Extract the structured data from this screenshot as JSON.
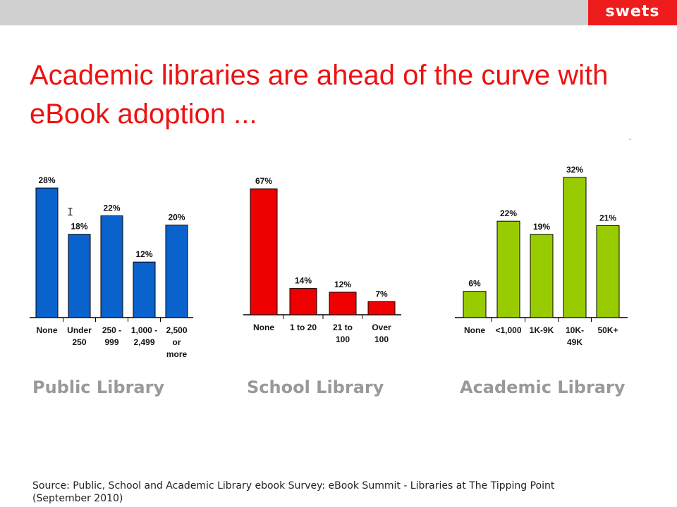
{
  "header": {
    "logo_text": "swets"
  },
  "title": "Academic libraries are ahead of the curve with eBook adoption ...",
  "source_text": "Source: Public, School and Academic Library ebook Survey: eBook Summit - Libraries at The Tipping Point (September 2010)",
  "colors": {
    "public": "#0a63cc",
    "school": "#ee0000",
    "academic": "#99cc00",
    "title": "#ee1111",
    "logo_bg": "#ee1c1c"
  },
  "chart_data": [
    {
      "type": "bar",
      "label": "Public Library",
      "categories": [
        "None",
        "Under 250",
        "250 - 999",
        "1,000 - 2,499",
        "2,500 or more"
      ],
      "category_lines": [
        [
          "None"
        ],
        [
          "Under",
          "250"
        ],
        [
          "250 -",
          "999"
        ],
        [
          "1,000 -",
          "2,499"
        ],
        [
          "2,500",
          "or",
          "more"
        ]
      ],
      "values": [
        28,
        18,
        22,
        12,
        20
      ],
      "data_labels": [
        "28%",
        "18%",
        "22%",
        "12%",
        "20%"
      ],
      "unit": "%"
    },
    {
      "type": "bar",
      "label": "School Library",
      "categories": [
        "None",
        "1 to 20",
        "21 to 100",
        "Over 100"
      ],
      "category_lines": [
        [
          "None"
        ],
        [
          "1 to 20"
        ],
        [
          "21 to",
          "100"
        ],
        [
          "Over",
          "100"
        ]
      ],
      "values": [
        67,
        14,
        12,
        7
      ],
      "data_labels": [
        "67%",
        "14%",
        "12%",
        "7%"
      ],
      "unit": "%"
    },
    {
      "type": "bar",
      "label": "Academic Library",
      "categories": [
        "None",
        "<1,000",
        "1K-9K",
        "10K-49K",
        "50K+"
      ],
      "category_lines": [
        [
          "None"
        ],
        [
          "<1,000"
        ],
        [
          "1K-9K"
        ],
        [
          "10K-",
          "49K"
        ],
        [
          "50K+"
        ]
      ],
      "values": [
        6,
        22,
        19,
        32,
        21
      ],
      "data_labels": [
        "6%",
        "22%",
        "19%",
        "32%",
        "21%"
      ],
      "unit": "%"
    }
  ]
}
